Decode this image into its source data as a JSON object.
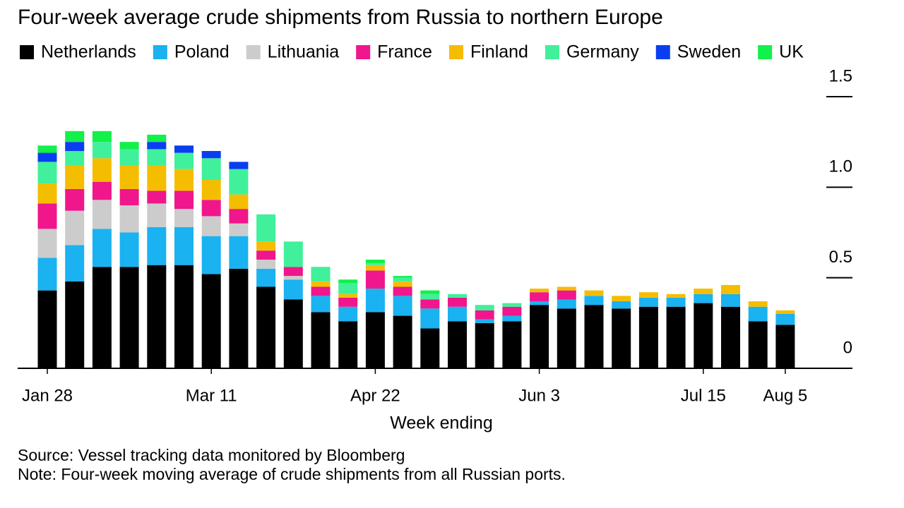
{
  "chart_data": {
    "type": "stacked_bar",
    "title": "Four-week average crude shipments from Russia to northern Europe",
    "x_label": "Week ending",
    "source": "Source: Vessel tracking data monitored by Bloomberg",
    "note": "Note: Four-week moving average of crude shipments from all Russian ports.",
    "categories": [
      "Jan 28",
      null,
      null,
      null,
      null,
      null,
      "Mar 11",
      null,
      null,
      null,
      null,
      null,
      "Apr 22",
      null,
      null,
      null,
      null,
      null,
      "Jun 3",
      null,
      null,
      null,
      null,
      null,
      "Jul 15",
      null,
      null,
      "Aug 5"
    ],
    "ylim": [
      0,
      1.5
    ],
    "yticks": [
      0,
      0.5,
      {
        "value": 1,
        "label": "1.0"
      },
      1.5
    ],
    "series": [
      {
        "name": "Netherlands",
        "color": "#000000",
        "values": [
          0.43,
          0.48,
          0.56,
          0.56,
          0.57,
          0.57,
          0.52,
          0.55,
          0.45,
          0.38,
          0.31,
          0.26,
          0.31,
          0.29,
          0.22,
          0.26,
          0.25,
          0.26,
          0.35,
          0.33,
          0.35,
          0.33,
          0.34,
          0.34,
          0.36,
          0.34,
          0.26,
          0.24
        ]
      },
      {
        "name": "Poland",
        "color": "#1ab2f0",
        "values": [
          0.18,
          0.2,
          0.21,
          0.19,
          0.21,
          0.21,
          0.21,
          0.18,
          0.1,
          0.11,
          0.09,
          0.08,
          0.13,
          0.11,
          0.11,
          0.08,
          0.02,
          0.03,
          0.02,
          0.05,
          0.05,
          0.04,
          0.05,
          0.05,
          0.05,
          0.07,
          0.08,
          0.06
        ]
      },
      {
        "name": "Lithuania",
        "color": "#cccccc",
        "values": [
          0.16,
          0.19,
          0.16,
          0.15,
          0.13,
          0.1,
          0.11,
          0.07,
          0.05,
          0.02,
          0,
          0,
          0,
          0,
          0,
          0,
          0,
          0,
          0,
          0,
          0,
          0,
          0,
          0,
          0,
          0,
          0,
          0
        ]
      },
      {
        "name": "France",
        "color": "#f0168c",
        "values": [
          0.14,
          0.12,
          0.1,
          0.09,
          0.07,
          0.1,
          0.09,
          0.08,
          0.05,
          0.05,
          0.05,
          0.05,
          0.1,
          0.05,
          0.05,
          0.05,
          0.05,
          0.05,
          0.05,
          0.05,
          0,
          0,
          0,
          0,
          0,
          0,
          0,
          0
        ]
      },
      {
        "name": "Finland",
        "color": "#f5bd00",
        "values": [
          0.11,
          0.13,
          0.13,
          0.13,
          0.14,
          0.12,
          0.11,
          0.08,
          0.05,
          0,
          0.03,
          0.02,
          0.03,
          0.03,
          0,
          0,
          0,
          0,
          0.02,
          0.02,
          0.03,
          0.03,
          0.03,
          0.02,
          0.03,
          0.05,
          0.03,
          0.02
        ]
      },
      {
        "name": "Germany",
        "color": "#40f09a",
        "values": [
          0.12,
          0.08,
          0.09,
          0.09,
          0.09,
          0.09,
          0.12,
          0.14,
          0.15,
          0.14,
          0.08,
          0.06,
          0.01,
          0.02,
          0.03,
          0.02,
          0.03,
          0.02,
          0,
          0,
          0,
          0,
          0,
          0,
          0,
          0,
          0,
          0
        ]
      },
      {
        "name": "Sweden",
        "color": "#0a3ef0",
        "values": [
          0.05,
          0.05,
          0,
          0,
          0.04,
          0.04,
          0.04,
          0.04,
          0,
          0,
          0,
          0,
          0,
          0,
          0,
          0,
          0,
          0,
          0,
          0,
          0,
          0,
          0,
          0,
          0,
          0,
          0,
          0
        ]
      },
      {
        "name": "UK",
        "color": "#12f04a",
        "values": [
          0.04,
          0.06,
          0.06,
          0.04,
          0.04,
          0,
          0,
          0,
          0,
          0,
          0,
          0.02,
          0.02,
          0.01,
          0.02,
          0,
          0,
          0,
          0,
          0,
          0,
          0,
          0,
          0,
          0,
          0,
          0,
          0
        ]
      }
    ]
  }
}
